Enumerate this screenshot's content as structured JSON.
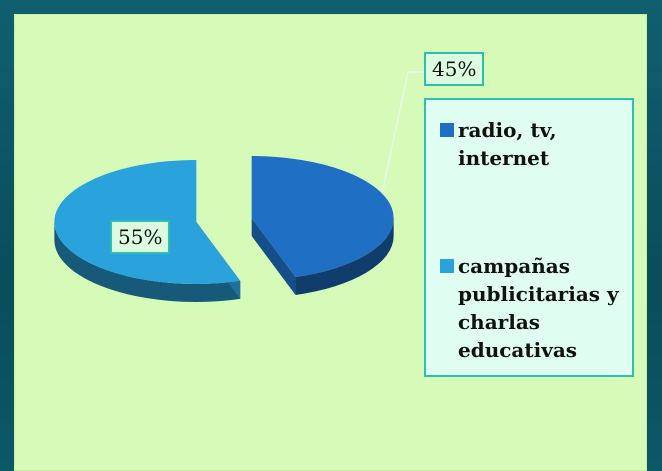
{
  "chart_data": {
    "type": "pie",
    "style": "3d-exploded",
    "series": [
      {
        "name": "radio, tv, internet",
        "value": 45,
        "label": "45%",
        "color": "#1f6fc4"
      },
      {
        "name": "campañas publicitarias y charlas educativas",
        "value": 55,
        "label": "55%",
        "color": "#2aa2dc"
      }
    ],
    "legend_position": "right",
    "legend": [
      {
        "label": "radio, tv, internet",
        "color": "#1f6fc4"
      },
      {
        "label": "campañas publicitarias y charlas educativas",
        "color": "#2aa2dc"
      }
    ]
  },
  "colors": {
    "background": "#0f5f6e",
    "panel": "#d6fbb8",
    "label_border": "#2fbfb2"
  }
}
